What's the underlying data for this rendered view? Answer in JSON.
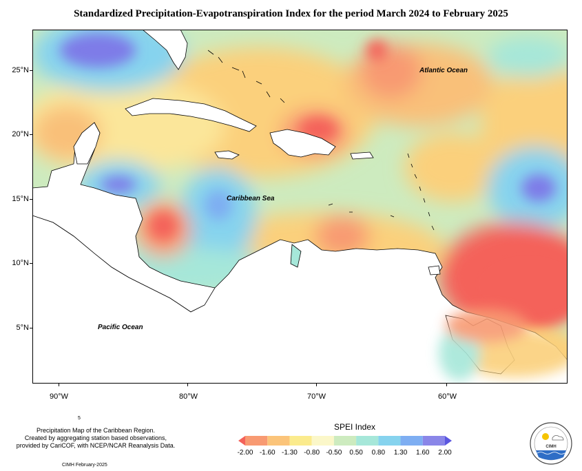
{
  "title": "Standardized Precipitation-Evapotranspiration Index for the period March 2024 to February 2025",
  "map": {
    "latitude_labels": [
      "25°N",
      "20°N",
      "15°N",
      "10°N",
      "5°N"
    ],
    "longitude_labels": [
      "90°W",
      "80°W",
      "70°W",
      "60°W"
    ],
    "place_labels": {
      "atlantic": "Atlantic Ocean",
      "caribbean": "Caribbean Sea",
      "pacific": "Pacific Ocean"
    }
  },
  "legend": {
    "title": "SPEI Index",
    "labels": [
      "-2.00",
      "-1.60",
      "-1.30",
      "-0.80",
      "-0.50",
      "0.50",
      "0.80",
      "1.30",
      "1.60",
      "2.00"
    ],
    "colors": [
      "#f4625a",
      "#f89a72",
      "#fbc47a",
      "#fbeb8d",
      "#fbf7c9",
      "#cdebbf",
      "#a6e7d9",
      "#86d3ee",
      "#7eaef2",
      "#8a86e8",
      "#5b57e0"
    ]
  },
  "footer": {
    "note_lines": [
      "Precipitation Map of the Caribbean Region.",
      "Created by aggregating station based observations,",
      "provided by CariCOF, with NCEP/NCAR Reanalysis Data."
    ],
    "small_mark": "5",
    "credit": "CIMH February-2025"
  },
  "logo": {
    "text": "CIMH"
  }
}
